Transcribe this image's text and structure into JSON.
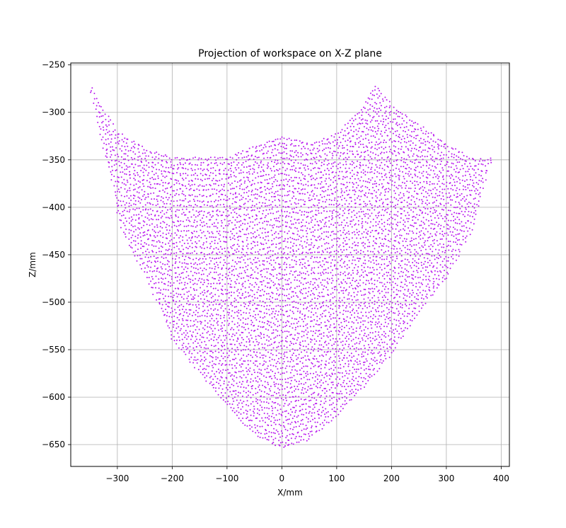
{
  "chart_data": {
    "type": "scatter",
    "title": "Projection of workspace on X-Z plane",
    "xlabel": "X/mm",
    "ylabel": "Z/mm",
    "xlim": [
      -385,
      415
    ],
    "ylim": [
      -673,
      -248
    ],
    "xticks": [
      -300,
      -200,
      -100,
      0,
      100,
      200,
      300,
      400
    ],
    "yticks": [
      -250,
      -300,
      -350,
      -400,
      -450,
      -500,
      -550,
      -600,
      -650
    ],
    "xtick_labels": [
      "−300",
      "−200",
      "−100",
      "0",
      "100",
      "200",
      "300",
      "400"
    ],
    "ytick_labels": [
      "−250",
      "−300",
      "−350",
      "−400",
      "−450",
      "−500",
      "−550",
      "−600",
      "−650"
    ],
    "grid": true,
    "marker_color": "#b816ee",
    "marker_size": 1,
    "series": [
      {
        "description_of_distribution": {
          "x_range": [
            -351,
            383
          ],
          "z_range": [
            -655,
            -267
          ],
          "top_boundary": [
            [
              -351,
              -268
            ],
            [
              -330,
              -290
            ],
            [
              -300,
              -318
            ],
            [
              -250,
              -335
            ],
            [
              -200,
              -345
            ],
            [
              -100,
              -345
            ],
            [
              0,
              -322
            ],
            [
              50,
              -330
            ],
            [
              100,
              -320
            ],
            [
              150,
              -290
            ],
            [
              170,
              -268
            ],
            [
              200,
              -290
            ],
            [
              250,
              -310
            ],
            [
              300,
              -330
            ],
            [
              350,
              -347
            ],
            [
              383,
              -346
            ]
          ],
          "bottom_boundary": [
            [
              -351,
              -268
            ],
            [
              -330,
              -330
            ],
            [
              -310,
              -370
            ],
            [
              -300,
              -410
            ],
            [
              -280,
              -440
            ],
            [
              -250,
              -470
            ],
            [
              -220,
              -510
            ],
            [
              -200,
              -540
            ],
            [
              -150,
              -575
            ],
            [
              -100,
              -610
            ],
            [
              -50,
              -640
            ],
            [
              0,
              -655
            ],
            [
              50,
              -645
            ],
            [
              100,
              -620
            ],
            [
              150,
              -590
            ],
            [
              200,
              -555
            ],
            [
              250,
              -510
            ],
            [
              300,
              -475
            ],
            [
              350,
              -420
            ],
            [
              383,
              -346
            ]
          ]
        }
      }
    ]
  }
}
